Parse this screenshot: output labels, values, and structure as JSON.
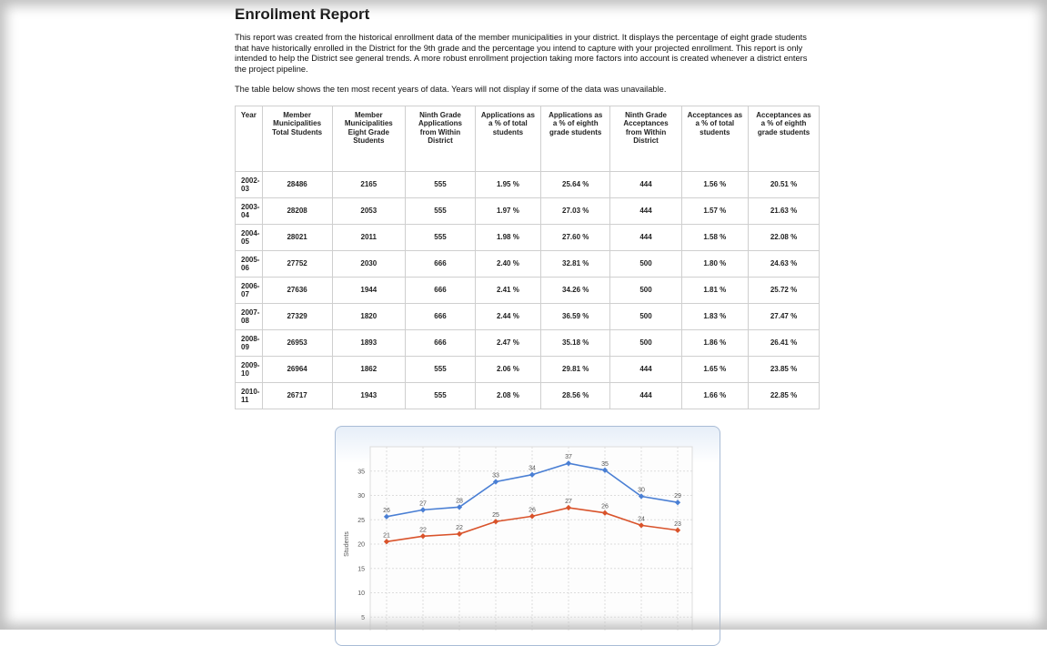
{
  "header": {
    "title": "Enrollment Report"
  },
  "intro": [
    "This report was created from the historical enrollment data of the member municipalities in your district. It displays the percentage of eight grade students that have historically enrolled in the District for the 9th grade and the percentage you intend to capture with your projected enrollment. This report is only intended to help the District see general trends. A more robust enrollment projection taking more factors into account is created whenever a district enters the project pipeline.",
    "The table below shows the ten most recent years of data. Years will not display if some of the data was unavailable."
  ],
  "table": {
    "columns": [
      "Year",
      "Member Municipalities Total Students",
      "Member Municipalities Eight Grade Students",
      "Ninth Grade Applications from Within District",
      "Applications as a % of total students",
      "Applications as a % of eighth grade students",
      "Ninth Grade Acceptances from Within District",
      "Acceptances as a % of total students",
      "Acceptances as a % of eighth grade students"
    ],
    "rows": [
      [
        "2002-03",
        "28486",
        "2165",
        "555",
        "1.95 %",
        "25.64 %",
        "444",
        "1.56 %",
        "20.51 %"
      ],
      [
        "2003-04",
        "28208",
        "2053",
        "555",
        "1.97 %",
        "27.03 %",
        "444",
        "1.57 %",
        "21.63 %"
      ],
      [
        "2004-05",
        "28021",
        "2011",
        "555",
        "1.98 %",
        "27.60 %",
        "444",
        "1.58 %",
        "22.08 %"
      ],
      [
        "2005-06",
        "27752",
        "2030",
        "666",
        "2.40 %",
        "32.81 %",
        "500",
        "1.80 %",
        "24.63 %"
      ],
      [
        "2006-07",
        "27636",
        "1944",
        "666",
        "2.41 %",
        "34.26 %",
        "500",
        "1.81 %",
        "25.72 %"
      ],
      [
        "2007-08",
        "27329",
        "1820",
        "666",
        "2.44 %",
        "36.59 %",
        "500",
        "1.83 %",
        "27.47 %"
      ],
      [
        "2008-09",
        "26953",
        "1893",
        "666",
        "2.47 %",
        "35.18 %",
        "500",
        "1.86 %",
        "26.41 %"
      ],
      [
        "2009-10",
        "26964",
        "1862",
        "555",
        "2.06 %",
        "29.81 %",
        "444",
        "1.65 %",
        "23.85 %"
      ],
      [
        "2010-11",
        "26717",
        "1943",
        "555",
        "2.08 %",
        "28.56 %",
        "444",
        "1.66 %",
        "22.85 %"
      ]
    ]
  },
  "chart_data": {
    "type": "line",
    "y_label": "Students",
    "ylim": [
      0,
      40
    ],
    "yticks": [
      5,
      10,
      15,
      20,
      25,
      30,
      35
    ],
    "grid": true,
    "series": [
      {
        "color": "#4a7fd4",
        "values": [
          25.64,
          27.03,
          27.6,
          32.81,
          34.26,
          36.59,
          35.18,
          29.81,
          28.56
        ],
        "value_labels": [
          "26",
          "27",
          "28",
          "33",
          "34",
          "37",
          "35",
          "30",
          "29"
        ]
      },
      {
        "color": "#d9532b",
        "values": [
          20.51,
          21.63,
          22.08,
          24.63,
          25.72,
          27.47,
          26.41,
          23.85,
          22.85
        ],
        "value_labels": [
          "21",
          "22",
          "22",
          "25",
          "26",
          "27",
          "26",
          "24",
          "23"
        ]
      }
    ]
  }
}
